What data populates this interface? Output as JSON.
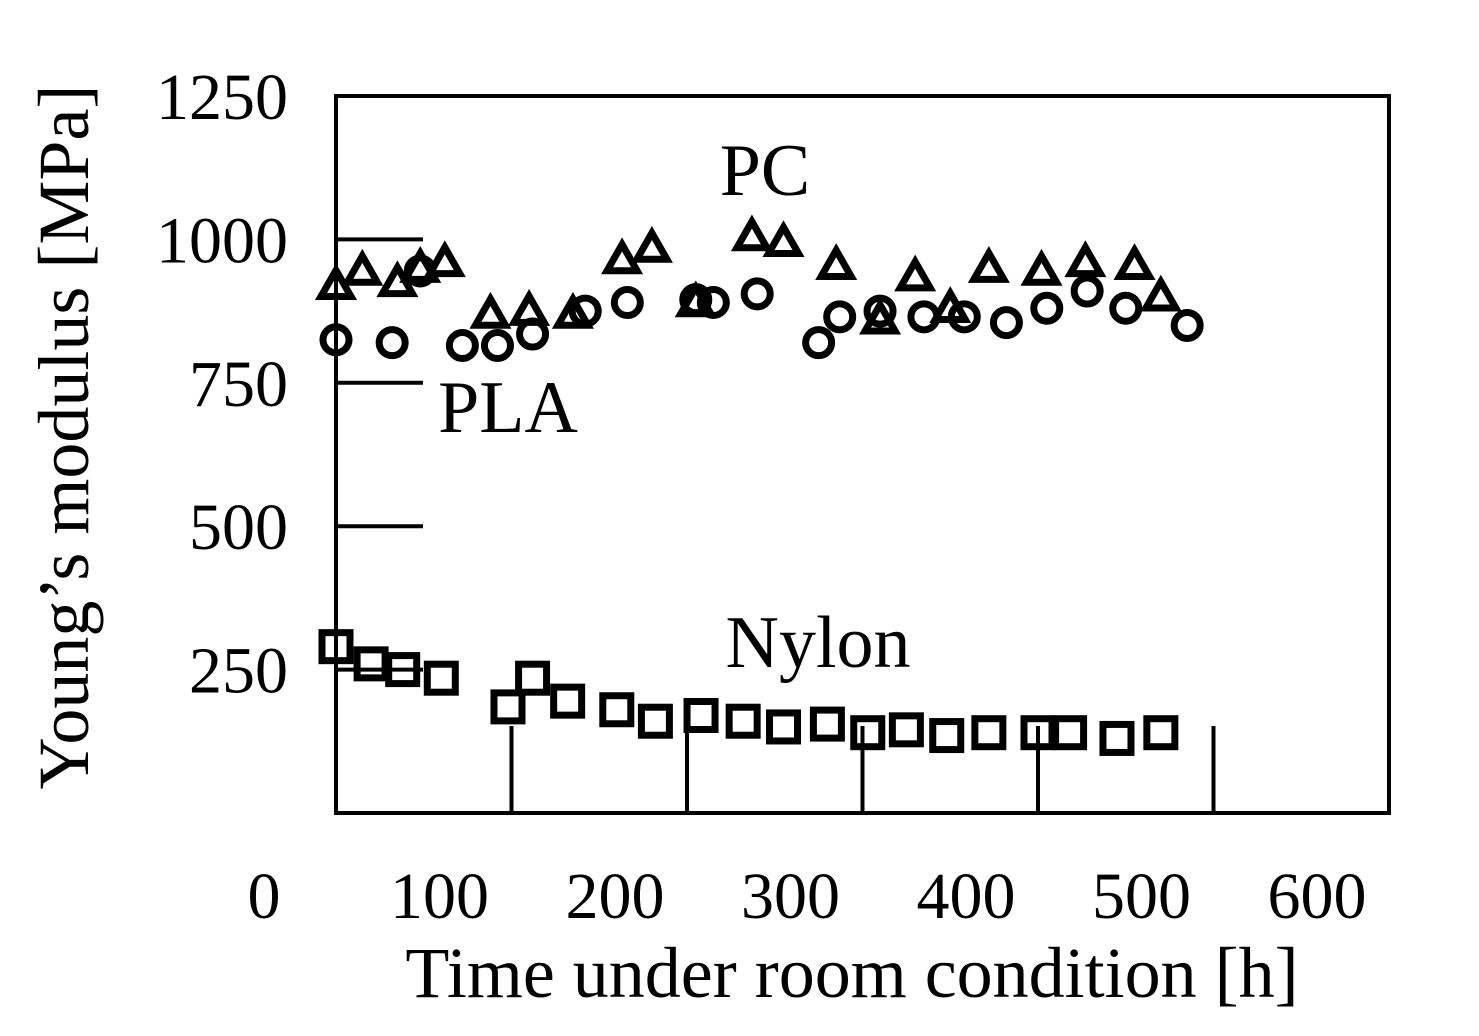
{
  "chart_data": {
    "type": "scatter",
    "xlabel": "Time under room condition [h]",
    "ylabel": "Young’s modulus [MPa]",
    "xlim": [
      0,
      600
    ],
    "ylim": [
      0,
      1250
    ],
    "xticks": [
      0,
      100,
      200,
      300,
      400,
      500,
      600
    ],
    "yticks": [
      250,
      500,
      750,
      1000,
      1250
    ],
    "grid": false,
    "series": [
      {
        "name": "PC",
        "marker": "triangle",
        "color": "#000000",
        "x": [
          0,
          15,
          35,
          48,
          62,
          88,
          110,
          135,
          163,
          180,
          205,
          237,
          255,
          285,
          310,
          330,
          350,
          372,
          402,
          427,
          455,
          470
        ],
        "y": [
          920,
          945,
          925,
          950,
          960,
          870,
          875,
          870,
          965,
          985,
          890,
          1005,
          995,
          955,
          860,
          935,
          880,
          950,
          945,
          960,
          955,
          900
        ]
      },
      {
        "name": "PLA",
        "marker": "circle",
        "color": "#000000",
        "x": [
          0,
          32,
          48,
          72,
          92,
          112,
          142,
          166,
          205,
          215,
          240,
          275,
          287,
          310,
          335,
          358,
          382,
          405,
          428,
          450,
          485
        ],
        "y": [
          825,
          820,
          945,
          815,
          815,
          835,
          875,
          890,
          895,
          890,
          905,
          820,
          865,
          875,
          865,
          865,
          855,
          880,
          910,
          880,
          850
        ]
      },
      {
        "name": "Nylon",
        "marker": "square",
        "color": "#000000",
        "x": [
          0,
          20,
          38,
          60,
          98,
          112,
          132,
          160,
          182,
          208,
          232,
          255,
          280,
          303,
          325,
          348,
          372,
          400,
          418,
          445,
          470
        ],
        "y": [
          290,
          260,
          250,
          235,
          185,
          235,
          195,
          180,
          160,
          170,
          160,
          150,
          155,
          140,
          145,
          135,
          140,
          140,
          140,
          130,
          140
        ]
      }
    ]
  }
}
